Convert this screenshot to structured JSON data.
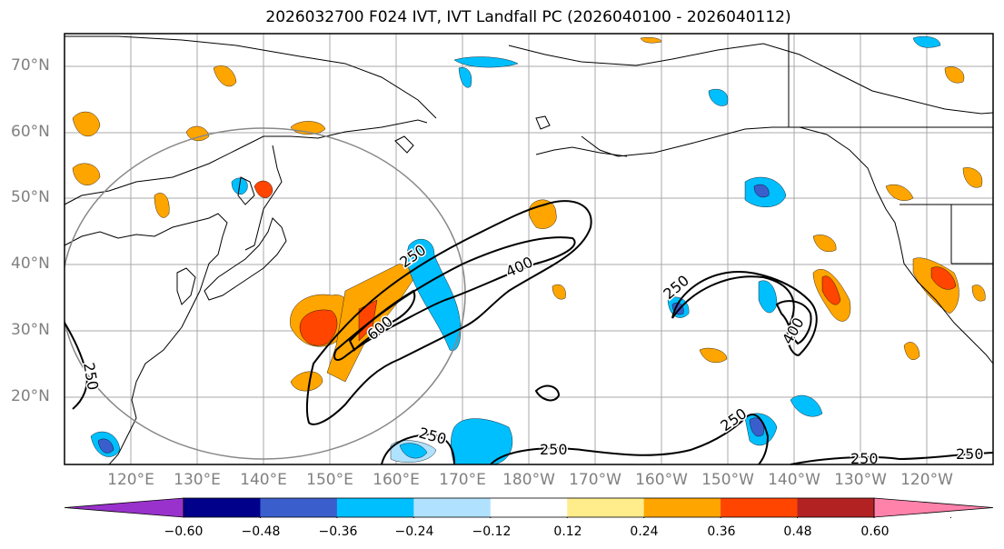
{
  "title": "2026032700 F024 IVT, IVT Landfall PC (2026040100 - 2026040112)",
  "map": {
    "lat_labels": [
      "70°N",
      "60°N",
      "50°N",
      "40°N",
      "30°N",
      "20°N"
    ],
    "lon_labels": [
      "120°E",
      "130°E",
      "140°E",
      "150°E",
      "160°E",
      "170°E",
      "180°W",
      "170°W",
      "160°W",
      "150°W",
      "140°W",
      "130°W",
      "120°W"
    ],
    "ivt_contour_labels": [
      "250",
      "250",
      "400",
      "600",
      "250",
      "400",
      "250",
      "250",
      "250",
      "250",
      "250"
    ]
  },
  "colorbar": {
    "ticks": [
      "−0.60",
      "−0.48",
      "−0.36",
      "−0.24",
      "−0.12",
      "0.12",
      "0.24",
      "0.36",
      "0.48",
      "0.60"
    ],
    "colors": [
      "#9932CC",
      "#00008B",
      "#3A5FCD",
      "#00BFFF",
      "#B0E2FF",
      "#FFFFFF",
      "#FFEC8B",
      "#FFA500",
      "#FF4500",
      "#B22222",
      "#FF82AB"
    ]
  }
}
